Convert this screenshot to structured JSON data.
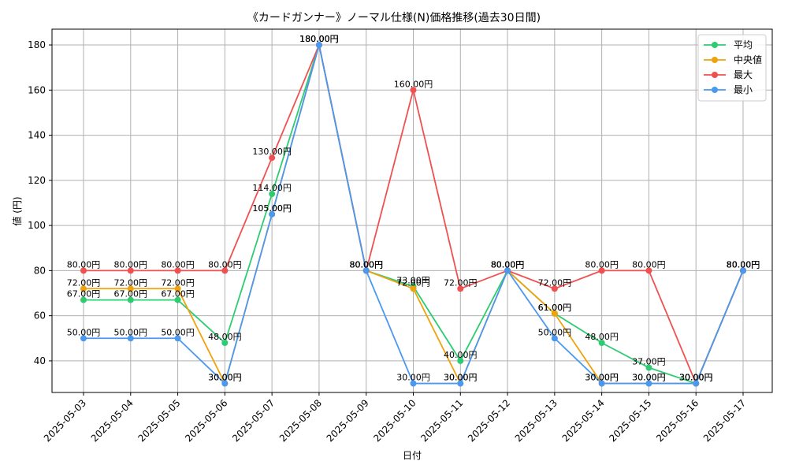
{
  "chart_data": {
    "type": "line",
    "title": "《カードガンナー》ノーマル仕様(N)価格推移(過去30日間)",
    "xlabel": "日付",
    "ylabel": "値 (円)",
    "ylim": [
      26,
      187
    ],
    "yticks": [
      40,
      60,
      80,
      100,
      120,
      140,
      160,
      180
    ],
    "grid": true,
    "legend_position": "top-right",
    "categories": [
      "2025-05-03",
      "2025-05-04",
      "2025-05-05",
      "2025-05-06",
      "2025-05-07",
      "2025-05-08",
      "2025-05-09",
      "2025-05-10",
      "2025-05-11",
      "2025-05-12",
      "2025-05-13",
      "2025-05-14",
      "2025-05-15",
      "2025-05-16",
      "2025-05-17"
    ],
    "series": [
      {
        "name": "平均",
        "color": "#2ecc71",
        "values": [
          67,
          67,
          67,
          48,
          114,
          180,
          80,
          73,
          40,
          80,
          61,
          48,
          37,
          30,
          80
        ]
      },
      {
        "name": "中央値",
        "color": "#f1a20b",
        "values": [
          72,
          72,
          72,
          30,
          105,
          180,
          80,
          72,
          30,
          80,
          61,
          30,
          30,
          30,
          80
        ]
      },
      {
        "name": "最大",
        "color": "#f05050",
        "values": [
          80,
          80,
          80,
          80,
          130,
          180,
          80,
          160,
          72,
          80,
          72,
          80,
          80,
          30,
          80
        ]
      },
      {
        "name": "最小",
        "color": "#4a98f0",
        "values": [
          50,
          50,
          50,
          30,
          105,
          180,
          80,
          30,
          30,
          80,
          50,
          30,
          30,
          30,
          80
        ]
      }
    ],
    "value_suffix": "円"
  }
}
